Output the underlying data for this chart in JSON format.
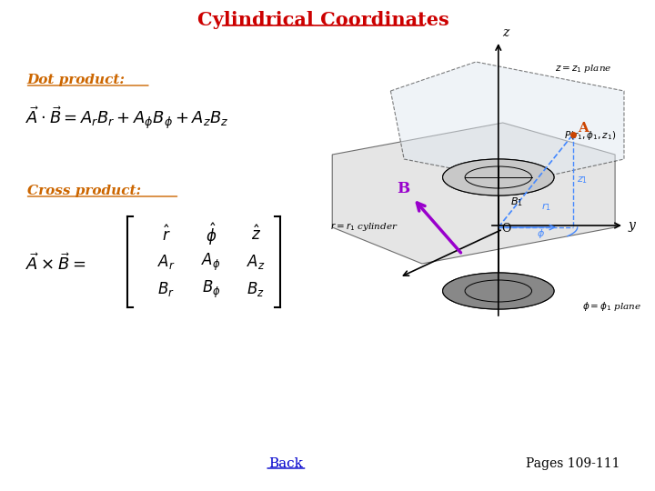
{
  "title": "Cylindrical Coordinates",
  "title_color": "#cc0000",
  "title_fontsize": 15,
  "bg_color": "#ffffff",
  "dot_product_label": "Dot product:",
  "dot_product_label_color": "#cc6600",
  "cross_product_label": "Cross product:",
  "cross_product_label_color": "#cc6600",
  "back_label": "Back",
  "pages_label": "Pages 109-111"
}
